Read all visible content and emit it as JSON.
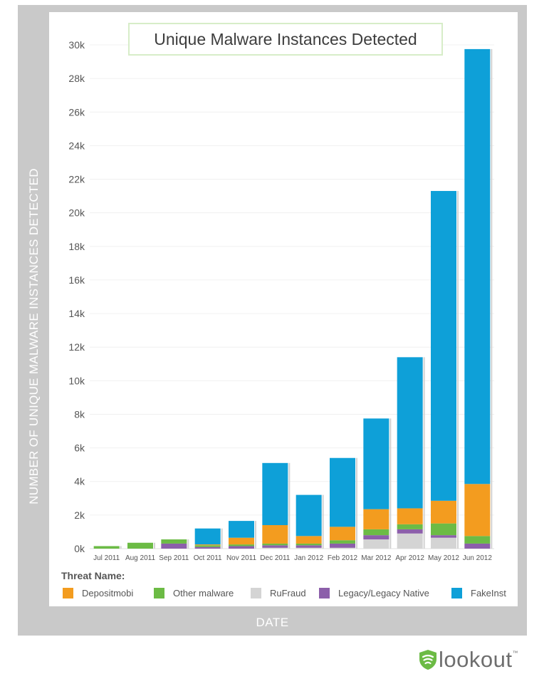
{
  "chart_data": {
    "type": "bar",
    "stacked": true,
    "title": "Unique Malware Instances Detected",
    "xlabel": "DATE",
    "ylabel": "NUMBER OF UNIQUE MALWARE INSTANCES DETECTED",
    "ylim": [
      0,
      30000
    ],
    "yticks": [
      0,
      2000,
      4000,
      6000,
      8000,
      10000,
      12000,
      14000,
      16000,
      18000,
      20000,
      22000,
      24000,
      26000,
      28000,
      30000
    ],
    "ytick_labels": [
      "0k",
      "2k",
      "4k",
      "6k",
      "8k",
      "10k",
      "12k",
      "14k",
      "16k",
      "18k",
      "20k",
      "22k",
      "24k",
      "26k",
      "28k",
      "30k"
    ],
    "grid": true,
    "categories": [
      "Jul 2011",
      "Aug 2011",
      "Sep 2011",
      "Oct 2011",
      "Nov 2011",
      "Dec 2011",
      "Jan 2012",
      "Feb 2012",
      "Mar 2012",
      "Apr 2012",
      "May 2012",
      "Jun 2012"
    ],
    "legend_title": "Threat Name:",
    "legend_position": "bottom",
    "series": [
      {
        "name": "RuFraud",
        "color": "#d4d4d4",
        "values": [
          0,
          0,
          0,
          0,
          0,
          50,
          50,
          50,
          550,
          900,
          650,
          0
        ]
      },
      {
        "name": "Legacy/Legacy Native",
        "color": "#8c5faa",
        "values": [
          0,
          0,
          300,
          100,
          150,
          150,
          150,
          250,
          250,
          250,
          150,
          300
        ]
      },
      {
        "name": "Other malware",
        "color": "#6cbb45",
        "values": [
          150,
          350,
          250,
          100,
          100,
          100,
          100,
          200,
          350,
          300,
          700,
          450
        ]
      },
      {
        "name": "Depositmobi",
        "color": "#f39c1f",
        "values": [
          0,
          0,
          0,
          50,
          400,
          1100,
          450,
          800,
          1200,
          950,
          1350,
          3100
        ]
      },
      {
        "name": "FakeInst",
        "color": "#0ea0d8",
        "values": [
          0,
          0,
          0,
          950,
          1000,
          3700,
          2450,
          4100,
          5400,
          9000,
          18450,
          25900
        ]
      }
    ],
    "legend_order": [
      "Depositmobi",
      "Other malware",
      "RuFraud",
      "Legacy/Legacy Native",
      "FakeInst"
    ]
  },
  "brand": {
    "name": "lookout",
    "tm": "™",
    "color": "#6cbb45"
  }
}
